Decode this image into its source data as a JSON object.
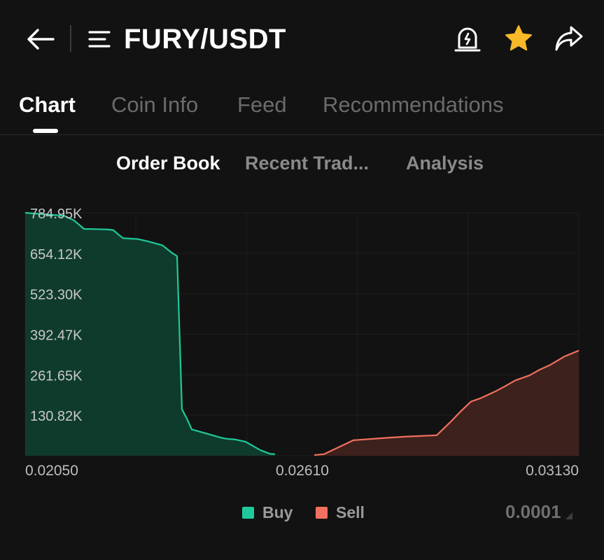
{
  "header": {
    "pair": "FURY/USDT",
    "star_color": "#F7B928"
  },
  "tabs": [
    {
      "label": "Chart",
      "active": true
    },
    {
      "label": "Coin Info",
      "active": false
    },
    {
      "label": "Feed",
      "active": false
    },
    {
      "label": "Recommendations",
      "active": false
    }
  ],
  "subtabs": [
    {
      "label": "Order Book",
      "active": true
    },
    {
      "label": "Recent Trad...",
      "active": false
    },
    {
      "label": "Analysis",
      "active": false
    }
  ],
  "legend": {
    "buy_label": "Buy",
    "sell_label": "Sell",
    "buy_color": "#1FC99A",
    "sell_color": "#F2705F"
  },
  "precision": "0.0001",
  "chart_data": {
    "type": "area",
    "x_tick_labels": [
      "0.02050",
      "0.02610",
      "0.03130"
    ],
    "y_tick_labels": [
      "130.82K",
      "261.65K",
      "392.47K",
      "523.30K",
      "654.12K",
      "784.95K"
    ],
    "y_ticks": [
      130820,
      261650,
      392470,
      523300,
      654120,
      784950
    ],
    "xlim": [
      0.0205,
      0.0318
    ],
    "ylim": [
      0,
      785000
    ],
    "grid": true,
    "series": [
      {
        "name": "Buy",
        "color": "#1FC99A",
        "x": [
          0.0205,
          0.0211,
          0.0213,
          0.0215,
          0.0217,
          0.022,
          0.0222,
          0.0223,
          0.0224,
          0.0225,
          0.0228,
          0.023,
          0.0233,
          0.0235,
          0.0236,
          0.0237,
          0.0238,
          0.0239,
          0.0245,
          0.0246,
          0.0248,
          0.025,
          0.0253,
          0.0255,
          0.0256
        ],
        "y": [
          785000,
          778000,
          775000,
          760000,
          733000,
          732000,
          731000,
          729000,
          715000,
          703000,
          700000,
          693000,
          680000,
          655000,
          645000,
          150000,
          120000,
          85000,
          58000,
          55000,
          52000,
          45000,
          18000,
          6000,
          5000
        ]
      },
      {
        "name": "Sell",
        "color": "#F2705F",
        "x": [
          0.0264,
          0.0266,
          0.0272,
          0.0279,
          0.0283,
          0.0289,
          0.0292,
          0.0294,
          0.0296,
          0.0298,
          0.0301,
          0.0303,
          0.0305,
          0.0308,
          0.031,
          0.0312,
          0.0315,
          0.0318
        ],
        "y": [
          2000,
          5000,
          50000,
          58000,
          62000,
          66000,
          112000,
          145000,
          175000,
          186000,
          208000,
          225000,
          243000,
          260000,
          278000,
          292000,
          320000,
          340000
        ]
      }
    ]
  }
}
